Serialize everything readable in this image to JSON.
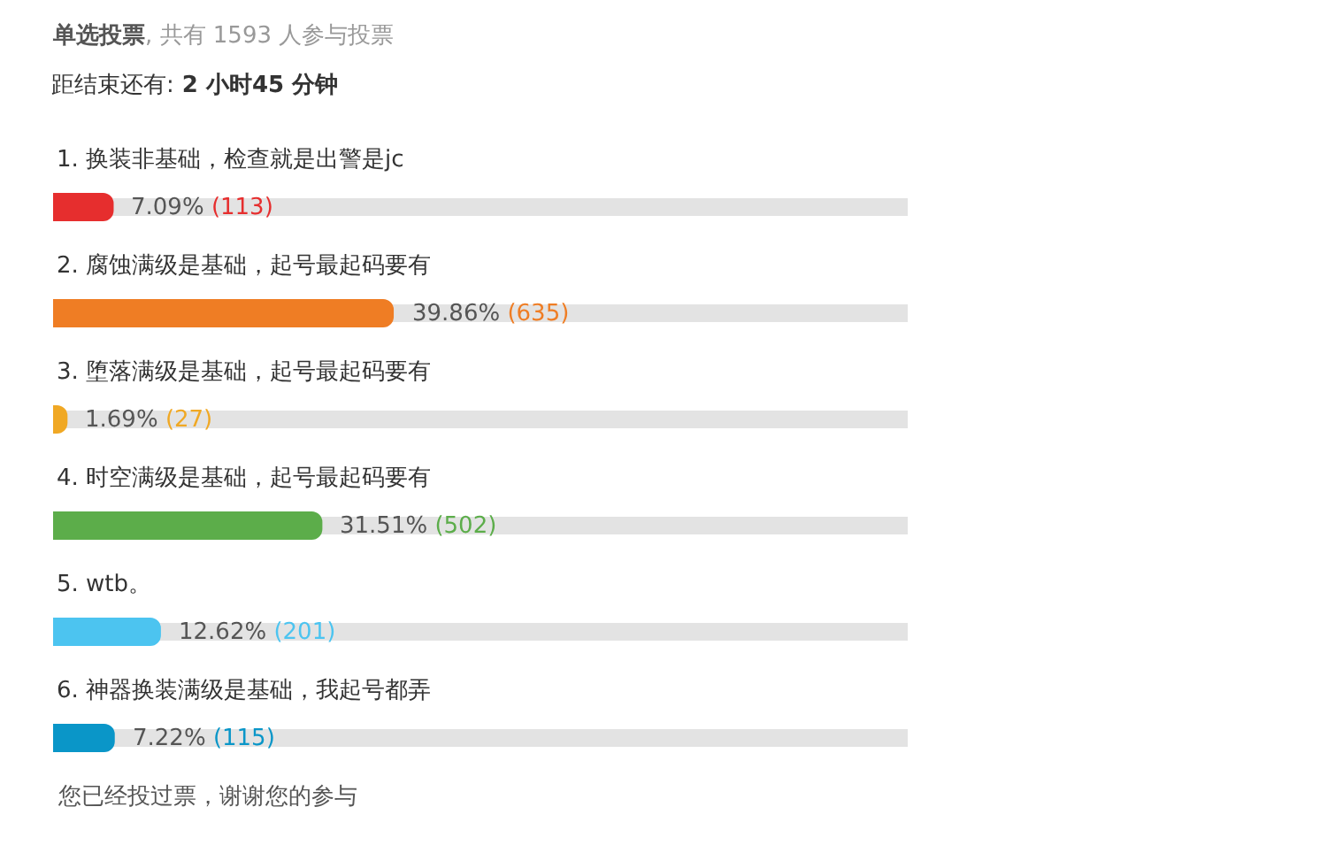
{
  "chart_data": {
    "type": "bar",
    "orientation": "horizontal",
    "title": "单选投票, 共有 1593 人参与投票",
    "subtitle": "距结束还有: 2 小时45 分钟",
    "categories": [
      "1. 换装非基础，检查就是出警是jc",
      "2. 腐蚀满级是基础，起号最起码要有",
      "3. 堕落满级是基础，起号最起码要有",
      "4. 时空满级是基础，起号最起码要有",
      "5. wtb。",
      "6. 神器换装满级是基础，我起号都弄"
    ],
    "values": [
      7.09,
      39.86,
      1.69,
      31.51,
      12.62,
      7.22
    ],
    "colors": [
      "#e62e2e",
      "#ef7d24",
      "#f0a824",
      "#5cad4a",
      "#4cc4f0",
      "#0a96c8"
    ],
    "value_labels": [
      "7.09% (113)",
      "39.86% (635)",
      "1.69% (27)",
      "31.51% (502)",
      "12.62% (201)",
      "7.22% (115)"
    ],
    "xlim": [
      0,
      100
    ],
    "tick_labels": "y",
    "grid": "y",
    "annotations": [
      "您已经投过票，谢谢您的参与"
    ]
  }
}
